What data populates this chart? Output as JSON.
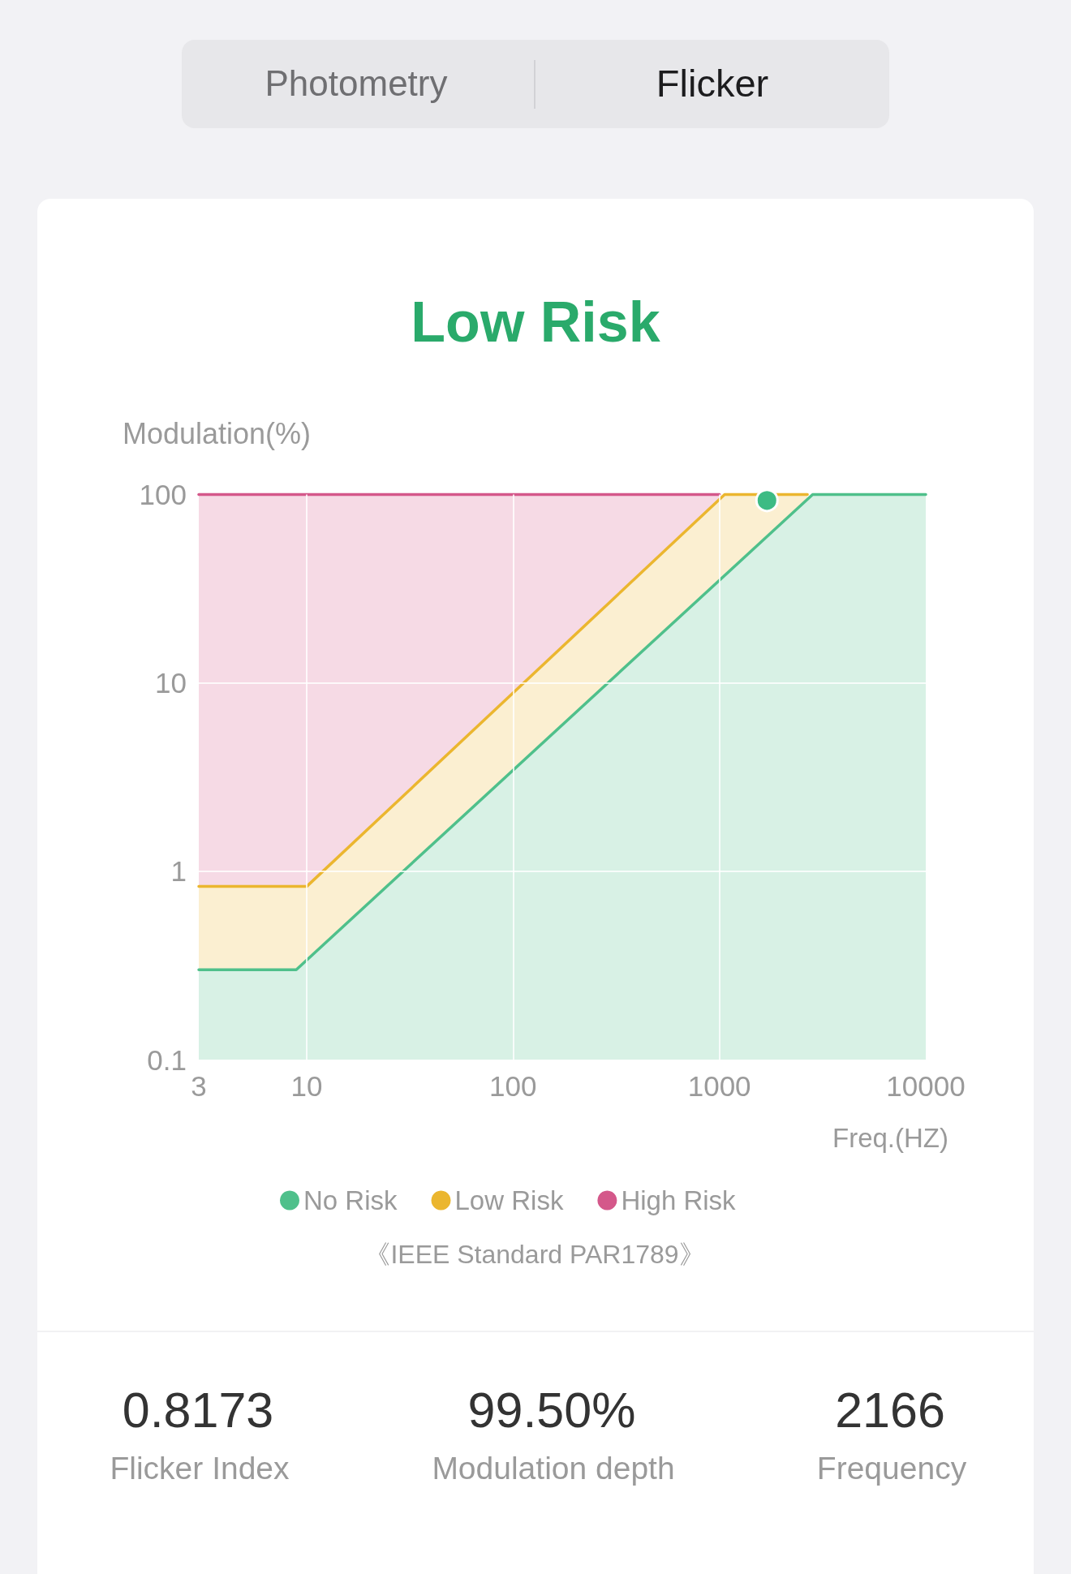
{
  "chart_data": {
    "type": "area",
    "title": "Low Risk",
    "xlabel": "Freq.(HZ)",
    "ylabel": "Modulation(%)",
    "log": "xy",
    "xlim": [
      3,
      10000
    ],
    "ylim": [
      0.1,
      100
    ],
    "xticks": [
      3,
      10,
      100,
      1000,
      10000
    ],
    "yticks": [
      0.1,
      1,
      10,
      100
    ],
    "grid": true,
    "legend": "bottom",
    "series": [
      {
        "name": "No Risk",
        "color": "#4fc08b",
        "x": [
          3,
          8.9,
          2830,
          10000
        ],
        "values": [
          0.3,
          0.3,
          100,
          100
        ]
      },
      {
        "name": "Low Risk",
        "color": "#ebb62f",
        "x": [
          3,
          10,
          1060,
          2670
        ],
        "values": [
          0.83,
          0.83,
          100,
          100
        ]
      },
      {
        "name": "High Risk",
        "color": "#d4588a",
        "x": [
          3,
          10,
          1000
        ],
        "values": [
          100,
          100,
          100
        ]
      },
      {
        "type": "scatter",
        "color": "#3dbb84",
        "marker": "circle",
        "x": [
          1700
        ],
        "values": [
          93
        ]
      }
    ],
    "annotations": [
      "Photometry",
      "Flicker",
      "《IEEE Standard PAR1789》",
      "0.8173",
      "Flicker Index",
      "99.50%",
      "Modulation depth",
      "2166",
      "Frequency"
    ]
  }
}
